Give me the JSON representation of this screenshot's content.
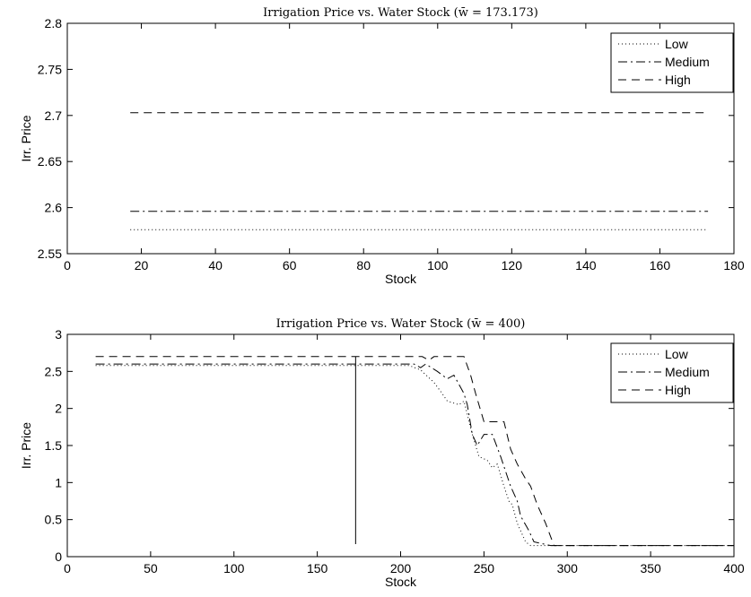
{
  "chart_data": [
    {
      "type": "line",
      "title": "Irrigation Price vs. Water Stock (w̄ = 173.173)",
      "xlabel": "Stock",
      "ylabel": "Irr. Price",
      "xlim": [
        0,
        180
      ],
      "ylim": [
        2.55,
        2.8
      ],
      "xticks": [
        "0",
        "20",
        "40",
        "60",
        "80",
        "100",
        "120",
        "140",
        "160",
        "180"
      ],
      "yticks": [
        "2.55",
        "2.6",
        "2.65",
        "2.7",
        "2.75",
        "2.8"
      ],
      "legend_position": "top-right",
      "grid": false,
      "series": [
        {
          "name": "Low",
          "style": "dotted",
          "x": [
            17,
            173
          ],
          "y": [
            2.576,
            2.576
          ]
        },
        {
          "name": "Medium",
          "style": "dashdot",
          "x": [
            17,
            173
          ],
          "y": [
            2.596,
            2.596
          ]
        },
        {
          "name": "High",
          "style": "dashed",
          "x": [
            17,
            173
          ],
          "y": [
            2.703,
            2.703
          ]
        }
      ]
    },
    {
      "type": "line",
      "title": "Irrigation Price vs. Water Stock (w̄ = 400)",
      "xlabel": "Stock",
      "ylabel": "Irr. Price",
      "xlim": [
        0,
        400
      ],
      "ylim": [
        0,
        3
      ],
      "xticks": [
        "0",
        "50",
        "100",
        "150",
        "200",
        "250",
        "300",
        "350",
        "400"
      ],
      "yticks": [
        "0",
        "0.5",
        "1",
        "1.5",
        "2",
        "2.5",
        "3"
      ],
      "legend_position": "top-right",
      "grid": false,
      "series": [
        {
          "name": "Low",
          "style": "dotted",
          "x": [
            17,
            205,
            212,
            220,
            225,
            228,
            235,
            238,
            243,
            247,
            252,
            255,
            258,
            262,
            265,
            267,
            270,
            272,
            275,
            278,
            282,
            300,
            400
          ],
          "y": [
            2.58,
            2.58,
            2.52,
            2.35,
            2.2,
            2.1,
            2.05,
            2.1,
            1.65,
            1.35,
            1.3,
            1.2,
            1.25,
            0.95,
            0.75,
            0.7,
            0.45,
            0.35,
            0.2,
            0.15,
            0.15,
            0.15,
            0.15
          ]
        },
        {
          "name": "Medium",
          "style": "dashdot",
          "x": [
            17,
            208,
            212,
            215,
            222,
            228,
            232,
            238,
            240,
            243,
            246,
            250,
            255,
            260,
            263,
            266,
            270,
            272,
            277,
            280,
            290,
            300,
            400
          ],
          "y": [
            2.6,
            2.6,
            2.55,
            2.6,
            2.5,
            2.4,
            2.45,
            2.2,
            2.05,
            1.65,
            1.5,
            1.65,
            1.65,
            1.35,
            1.15,
            0.95,
            0.75,
            0.55,
            0.35,
            0.2,
            0.15,
            0.15,
            0.15
          ]
        },
        {
          "name": "High",
          "style": "dashed",
          "x": [
            17,
            213,
            217,
            220,
            238,
            242,
            245,
            250,
            262,
            266,
            270,
            275,
            278,
            282,
            287,
            292,
            300,
            400
          ],
          "y": [
            2.7,
            2.7,
            2.65,
            2.7,
            2.7,
            2.45,
            2.2,
            1.82,
            1.82,
            1.45,
            1.25,
            1.05,
            0.95,
            0.7,
            0.45,
            0.15,
            0.15,
            0.15
          ]
        }
      ],
      "reference_line": {
        "x": 173,
        "y": [
          0.17,
          2.7
        ]
      }
    }
  ]
}
